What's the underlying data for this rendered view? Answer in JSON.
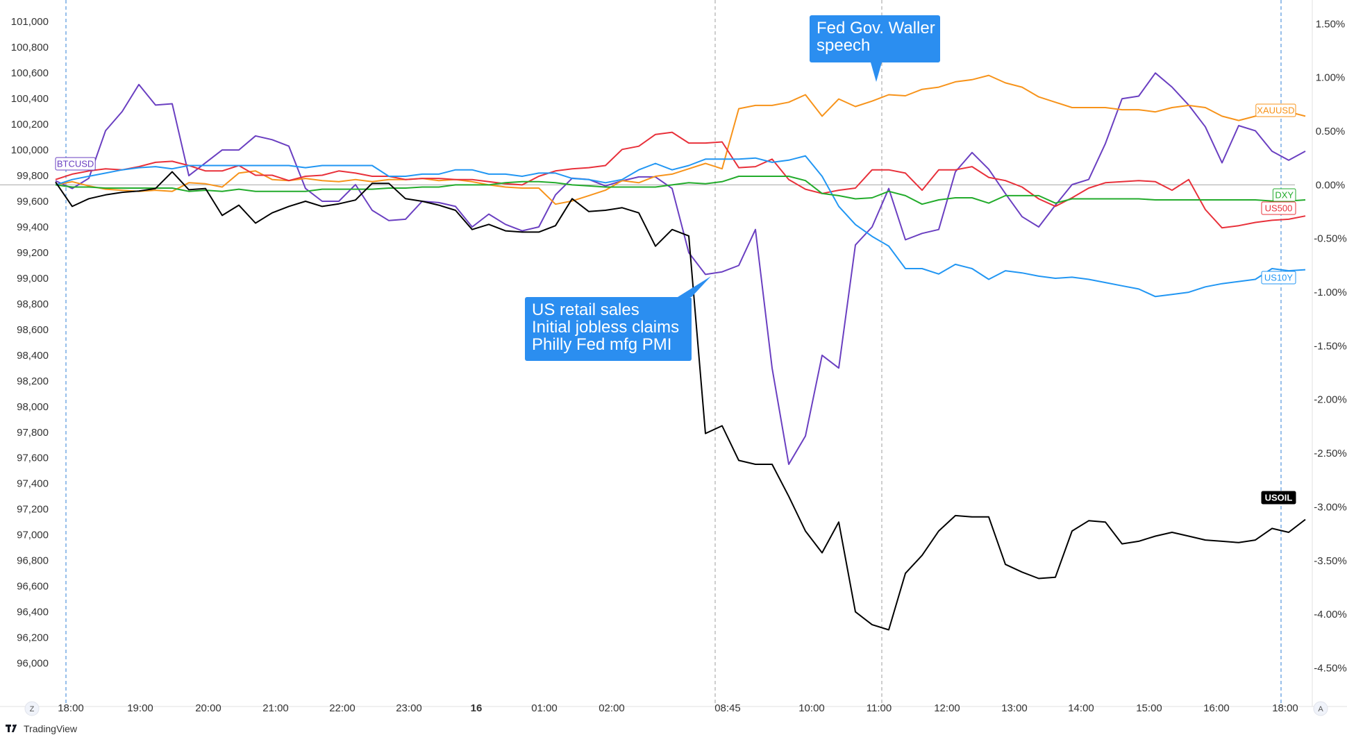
{
  "footer": {
    "brand": "TradingView",
    "logo_icon": "tradingview-logo-icon"
  },
  "corner_buttons": {
    "left": "Z",
    "right": "A"
  },
  "chart_data": {
    "type": "line",
    "grid": false,
    "time_labels": [
      "18:00",
      "19:00",
      "20:00",
      "21:00",
      "22:00",
      "23:00",
      "16",
      "01:00",
      "02:00",
      "08:45",
      "10:00",
      "11:00",
      "12:00",
      "13:00",
      "14:00",
      "15:00",
      "16:00",
      "18:00"
    ],
    "time_labels_bold": [
      "16"
    ],
    "left_axis": {
      "label": "",
      "ylim": [
        95900,
        101050
      ],
      "ticks": [
        "101,000",
        "100,800",
        "100,600",
        "100,400",
        "100,200",
        "100,000",
        "99,800",
        "99,600",
        "99,400",
        "99,200",
        "99,000",
        "98,800",
        "98,600",
        "98,400",
        "98,200",
        "98,000",
        "97,800",
        "97,600",
        "97,400",
        "97,200",
        "97,000",
        "96,800",
        "96,600",
        "96,400",
        "96,200",
        "96,000"
      ]
    },
    "right_axis": {
      "label": "",
      "unit": "%",
      "ylim": [
        -4.62,
        1.58
      ],
      "ticks": [
        "1.50%",
        "1.00%",
        "0.50%",
        "0.00%",
        "-0.50%",
        "-1.00%",
        "-1.50%",
        "-2.00%",
        "-2.50%",
        "-3.00%",
        "-3.50%",
        "-4.00%",
        "-4.50%"
      ]
    },
    "zero_line": 0,
    "event_lines": [
      "08:45",
      "11:00"
    ],
    "session_lines": [
      "18:00",
      "18:00"
    ],
    "annotations": [
      {
        "lines": [
          "Fed Gov. Waller",
          "speech"
        ],
        "at": "11:00"
      },
      {
        "lines": [
          "US retail sales",
          "Initial jobless claims",
          "Philly Fed mfg PMI"
        ],
        "at": "08:45"
      }
    ],
    "series": [
      {
        "name": "BTCUSD",
        "axis": "left",
        "color": "#6a3fc1",
        "tag_side": "left",
        "values": [
          99760,
          99700,
          99780,
          100150,
          100300,
          100510,
          100350,
          100360,
          99800,
          99900,
          100000,
          100000,
          100110,
          100080,
          100030,
          99700,
          99600,
          99600,
          99730,
          99530,
          99450,
          99460,
          99600,
          99590,
          99560,
          99400,
          99500,
          99420,
          99370,
          99400,
          99650,
          99780,
          99770,
          99720,
          99760,
          99790,
          99790,
          99700,
          99200,
          99030,
          99050,
          99100,
          99380,
          98300,
          97550,
          97770,
          98400,
          98300,
          99260,
          99400,
          99700,
          99300,
          99350,
          99380,
          99830,
          99980,
          99850,
          99660,
          99480,
          99400,
          99570,
          99730,
          99770,
          100050,
          100400,
          100420,
          100600,
          100490,
          100350,
          100180,
          99900,
          100190,
          100150,
          99990,
          99920,
          99990
        ]
      },
      {
        "name": "XAUUSD",
        "axis": "right",
        "color": "#f7931a",
        "tag_side": "right",
        "values": [
          0.0,
          0.03,
          -0.01,
          -0.04,
          -0.05,
          -0.06,
          -0.05,
          -0.06,
          0.02,
          0.01,
          -0.02,
          0.11,
          0.13,
          0.05,
          0.04,
          0.06,
          0.04,
          0.03,
          0.05,
          0.03,
          0.05,
          0.05,
          0.06,
          0.04,
          0.05,
          0.03,
          0.0,
          -0.02,
          -0.03,
          -0.03,
          -0.18,
          -0.15,
          -0.1,
          -0.05,
          0.04,
          0.02,
          0.08,
          0.1,
          0.15,
          0.2,
          0.15,
          0.71,
          0.74,
          0.74,
          0.77,
          0.84,
          0.64,
          0.8,
          0.73,
          0.78,
          0.84,
          0.83,
          0.89,
          0.91,
          0.96,
          0.98,
          1.02,
          0.95,
          0.91,
          0.82,
          0.77,
          0.72,
          0.72,
          0.72,
          0.7,
          0.7,
          0.68,
          0.72,
          0.74,
          0.72,
          0.64,
          0.6,
          0.64,
          0.67,
          0.68,
          0.64
        ]
      },
      {
        "name": "US500",
        "axis": "right",
        "color": "#e8303a",
        "tag_side": "right",
        "values": [
          0.05,
          0.1,
          0.13,
          0.15,
          0.14,
          0.17,
          0.21,
          0.22,
          0.18,
          0.13,
          0.13,
          0.18,
          0.09,
          0.09,
          0.04,
          0.08,
          0.09,
          0.13,
          0.11,
          0.08,
          0.08,
          0.05,
          0.06,
          0.06,
          0.05,
          0.05,
          0.03,
          0.01,
          0.0,
          0.08,
          0.13,
          0.15,
          0.16,
          0.18,
          0.33,
          0.36,
          0.47,
          0.49,
          0.39,
          0.39,
          0.4,
          0.16,
          0.17,
          0.24,
          0.05,
          -0.04,
          -0.08,
          -0.05,
          -0.03,
          0.14,
          0.14,
          0.11,
          -0.05,
          0.14,
          0.14,
          0.17,
          0.07,
          0.04,
          -0.02,
          -0.13,
          -0.2,
          -0.12,
          -0.03,
          0.02,
          0.03,
          0.04,
          0.03,
          -0.05,
          0.05,
          -0.23,
          -0.4,
          -0.38,
          -0.35,
          -0.33,
          -0.32,
          -0.29
        ]
      },
      {
        "name": "US10Y",
        "axis": "right",
        "color": "#2196f3",
        "tag_side": "right",
        "values": [
          0.0,
          0.05,
          0.08,
          0.11,
          0.14,
          0.16,
          0.17,
          0.15,
          0.18,
          0.18,
          0.18,
          0.18,
          0.18,
          0.18,
          0.18,
          0.16,
          0.18,
          0.18,
          0.18,
          0.18,
          0.08,
          0.08,
          0.1,
          0.1,
          0.14,
          0.14,
          0.1,
          0.1,
          0.08,
          0.11,
          0.11,
          0.06,
          0.05,
          0.02,
          0.05,
          0.14,
          0.2,
          0.14,
          0.18,
          0.24,
          0.24,
          0.24,
          0.25,
          0.21,
          0.23,
          0.27,
          0.08,
          -0.2,
          -0.37,
          -0.48,
          -0.57,
          -0.78,
          -0.78,
          -0.83,
          -0.74,
          -0.78,
          -0.88,
          -0.8,
          -0.82,
          -0.85,
          -0.87,
          -0.86,
          -0.88,
          -0.91,
          -0.94,
          -0.97,
          -1.04,
          -1.02,
          -1.0,
          -0.95,
          -0.92,
          -0.9,
          -0.88,
          -0.78,
          -0.8,
          -0.79
        ]
      },
      {
        "name": "DXY",
        "axis": "right",
        "color": "#22ab2b",
        "tag_side": "right",
        "values": [
          0.0,
          -0.02,
          -0.02,
          -0.03,
          -0.03,
          -0.03,
          -0.03,
          -0.03,
          -0.06,
          -0.05,
          -0.06,
          -0.04,
          -0.06,
          -0.06,
          -0.06,
          -0.06,
          -0.04,
          -0.04,
          -0.04,
          -0.04,
          -0.03,
          -0.03,
          -0.02,
          -0.02,
          0.0,
          0.0,
          0.0,
          0.02,
          0.03,
          0.03,
          0.02,
          0.0,
          -0.01,
          -0.02,
          -0.02,
          -0.02,
          -0.02,
          0.0,
          0.02,
          0.01,
          0.03,
          0.08,
          0.08,
          0.08,
          0.08,
          0.04,
          -0.08,
          -0.1,
          -0.13,
          -0.12,
          -0.06,
          -0.1,
          -0.18,
          -0.14,
          -0.12,
          -0.12,
          -0.17,
          -0.1,
          -0.1,
          -0.1,
          -0.17,
          -0.13,
          -0.13,
          -0.13,
          -0.13,
          -0.13,
          -0.14,
          -0.14,
          -0.14,
          -0.14,
          -0.14,
          -0.14,
          -0.14,
          -0.15,
          -0.15,
          -0.14
        ]
      },
      {
        "name": "USOIL",
        "axis": "left",
        "color": "#000000",
        "tag_side": "right",
        "values": [
          99750,
          99560,
          99620,
          99650,
          99670,
          99680,
          99700,
          99830,
          99690,
          99700,
          99490,
          99570,
          99430,
          99510,
          99560,
          99600,
          99560,
          99580,
          99610,
          99740,
          99740,
          99620,
          99600,
          99570,
          99530,
          99380,
          99420,
          99370,
          99360,
          99360,
          99410,
          99620,
          99520,
          99530,
          99550,
          99510,
          99250,
          99380,
          99330,
          97790,
          97850,
          97580,
          97550,
          97550,
          97300,
          97030,
          96860,
          97100,
          96400,
          96300,
          96260,
          96700,
          96840,
          97030,
          97150,
          97140,
          97140,
          96770,
          96710,
          96660,
          96670,
          97030,
          97110,
          97100,
          96930,
          96950,
          96990,
          97020,
          96990,
          96960,
          96950,
          96940,
          96960,
          97050,
          97020,
          97120
        ]
      }
    ]
  }
}
